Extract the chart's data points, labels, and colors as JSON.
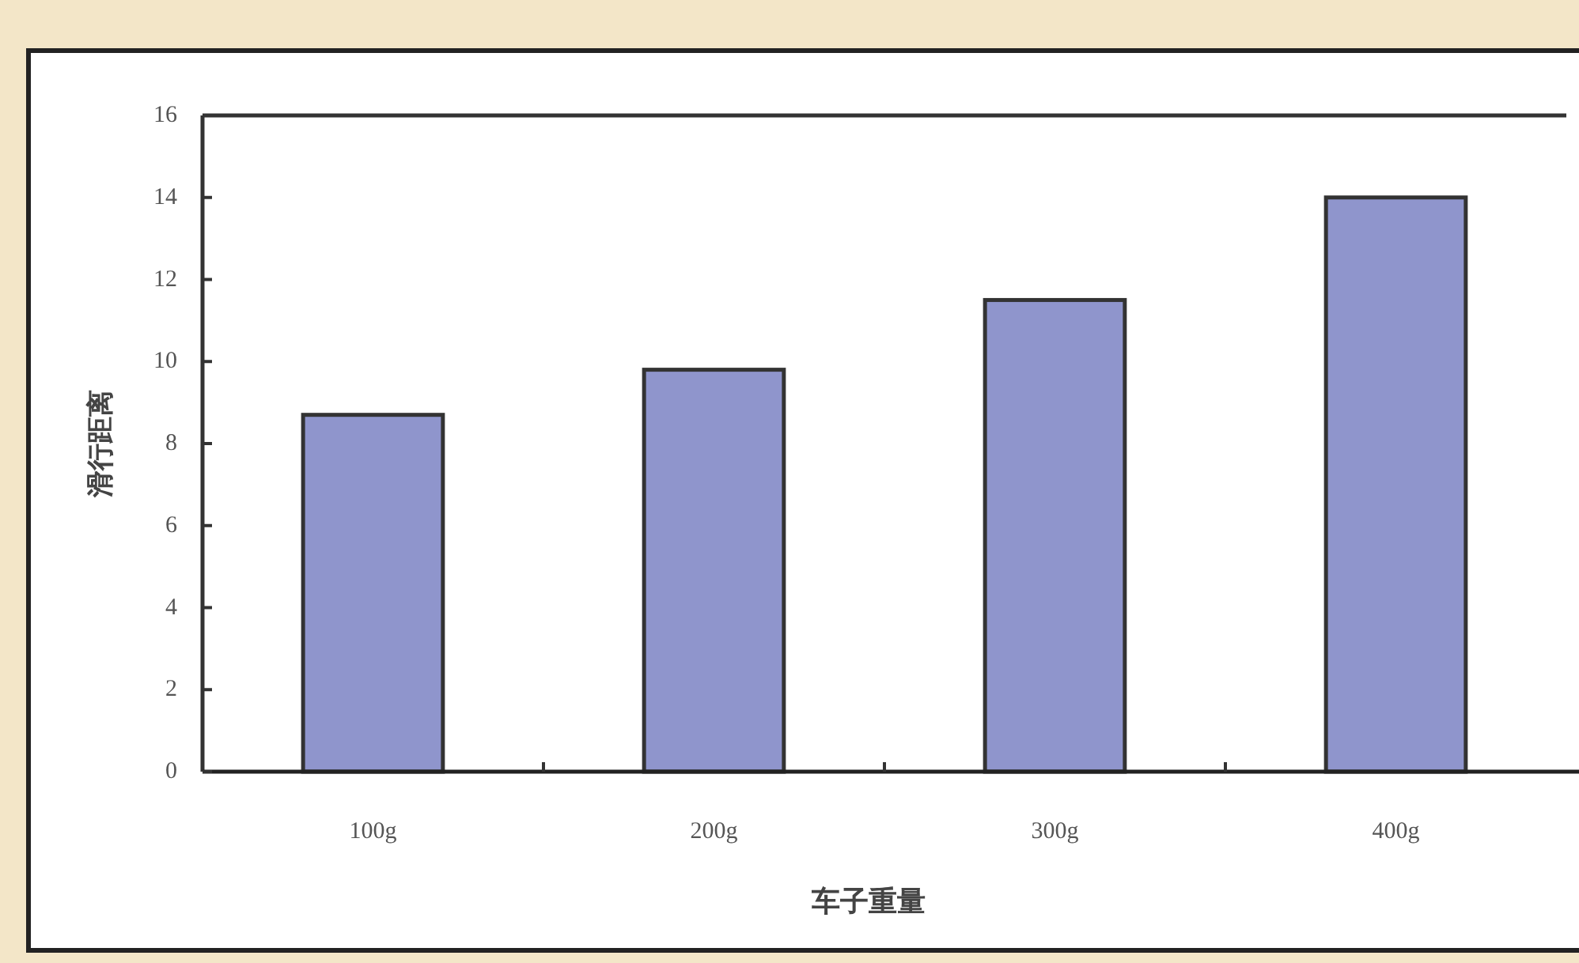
{
  "chart_data": {
    "type": "bar",
    "xlabel": "车子重量",
    "ylabel": "滑行距离",
    "categories": [
      "100g",
      "200g",
      "300g",
      "400g"
    ],
    "values": [
      8.7,
      9.8,
      11.5,
      14.0
    ],
    "color": "#8f95cc",
    "ylim": [
      0,
      16
    ],
    "yticks": [
      0,
      2,
      4,
      6,
      8,
      10,
      12,
      14,
      16
    ],
    "grid": false
  }
}
